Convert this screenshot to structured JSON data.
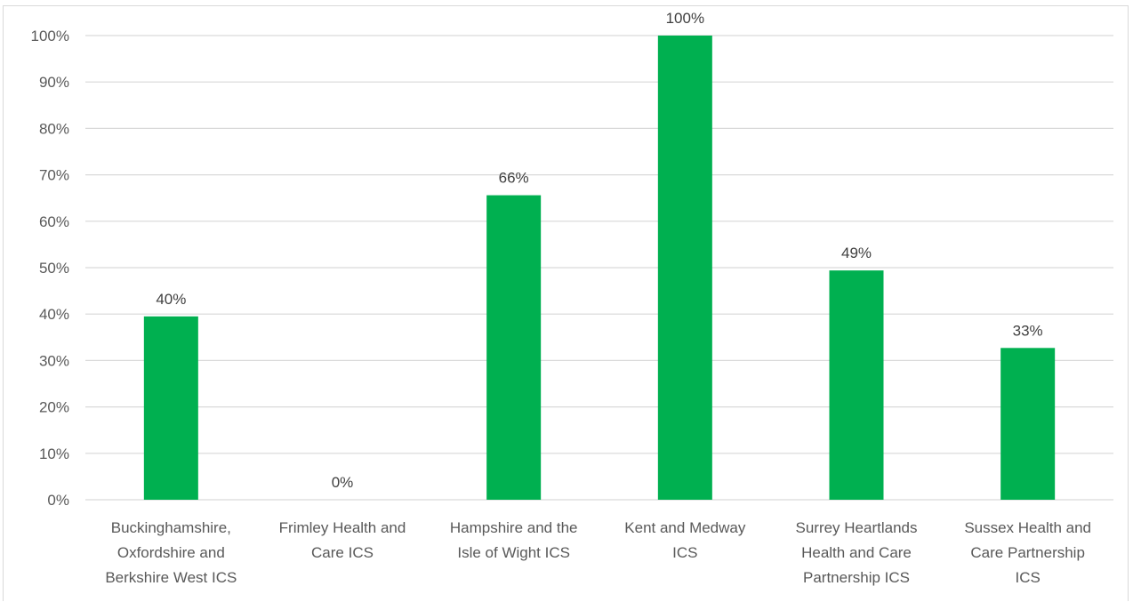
{
  "chart_data": {
    "type": "bar",
    "categories": [
      "Buckinghamshire, Oxfordshire and Berkshire West  ICS",
      "Frimley Health and Care ICS",
      "Hampshire and the Isle of Wight ICS",
      "Kent and Medway ICS",
      "Surrey Heartlands Health and Care Partnership ICS",
      "Sussex Health and Care Partnership ICS"
    ],
    "category_lines": [
      [
        "Buckinghamshire,",
        "Oxfordshire and",
        "Berkshire West  ICS"
      ],
      [
        "Frimley Health and",
        "Care ICS"
      ],
      [
        "Hampshire and the",
        "Isle of Wight ICS"
      ],
      [
        "Kent and Medway",
        "ICS"
      ],
      [
        "Surrey Heartlands",
        "Health and Care",
        "Partnership ICS"
      ],
      [
        "Sussex Health and",
        "Care Partnership",
        "ICS"
      ]
    ],
    "values": [
      0.395,
      0.0,
      0.656,
      1.0,
      0.494,
      0.327
    ],
    "data_labels": [
      "40%",
      "0%",
      "66%",
      "100%",
      "49%",
      "33%"
    ],
    "ylim": [
      0,
      1
    ],
    "yticks": [
      0,
      0.1,
      0.2,
      0.3,
      0.4,
      0.5,
      0.6,
      0.7,
      0.8,
      0.9,
      1.0
    ],
    "ytick_labels": [
      "0%",
      "10%",
      "20%",
      "30%",
      "40%",
      "50%",
      "60%",
      "70%",
      "80%",
      "90%",
      "100%"
    ],
    "title": "",
    "xlabel": "",
    "ylabel": "",
    "grid": true,
    "legend": "none",
    "bar_color": "#00b050",
    "grid_color": "#d9d9d9"
  }
}
